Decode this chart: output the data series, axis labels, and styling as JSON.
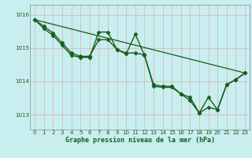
{
  "background_color": "#c8eef0",
  "grid_color_v": "#d8b0b0",
  "grid_color_h": "#d8b0b0",
  "line_color": "#1a5c1a",
  "marker_color": "#1a5c1a",
  "title": "Graphe pression niveau de la mer (hPa)",
  "xlim": [
    -0.5,
    23.5
  ],
  "ylim": [
    1012.55,
    1016.3
  ],
  "yticks": [
    1013,
    1014,
    1015,
    1016
  ],
  "xticks": [
    0,
    1,
    2,
    3,
    4,
    5,
    6,
    7,
    8,
    9,
    10,
    11,
    12,
    13,
    14,
    15,
    16,
    17,
    18,
    19,
    20,
    21,
    22,
    23
  ],
  "series": [
    {
      "x": [
        0,
        1,
        2,
        3,
        4,
        5,
        6,
        7,
        8,
        9,
        10,
        11,
        12,
        13,
        14,
        15,
        16,
        17,
        18,
        19,
        20,
        21,
        22,
        23
      ],
      "y": [
        1015.85,
        1015.65,
        1015.45,
        1015.15,
        1014.85,
        1014.75,
        1014.75,
        1015.25,
        1015.25,
        1014.95,
        1014.85,
        1014.85,
        1014.8,
        1013.85,
        1013.82,
        1013.82,
        1013.62,
        1013.42,
        1013.05,
        1013.22,
        1013.15,
        1013.9,
        1014.05,
        1014.25
      ],
      "marker": "D",
      "markersize": 2.5,
      "linewidth": 1.0
    },
    {
      "x": [
        0,
        1,
        2,
        3,
        4,
        5,
        6,
        7,
        8,
        9,
        10,
        11,
        12,
        13,
        14,
        15,
        16,
        17,
        18,
        19,
        20,
        21,
        22,
        23
      ],
      "y": [
        1015.85,
        1015.58,
        1015.38,
        1015.08,
        1014.78,
        1014.72,
        1014.72,
        1015.48,
        1015.48,
        1014.95,
        1014.82,
        1015.42,
        1014.78,
        1013.9,
        1013.85,
        1013.85,
        1013.62,
        1013.52,
        1013.05,
        1013.52,
        1013.15,
        1013.9,
        1014.05,
        1014.25
      ],
      "marker": "D",
      "markersize": 2.5,
      "linewidth": 1.0
    },
    {
      "x": [
        0,
        23
      ],
      "y": [
        1015.85,
        1014.25
      ],
      "marker": null,
      "markersize": 0,
      "linewidth": 0.9
    }
  ],
  "tick_fontsize": 5.0,
  "title_fontsize": 6.0,
  "tick_color": "#1a5c1a",
  "spine_color": "#888888"
}
